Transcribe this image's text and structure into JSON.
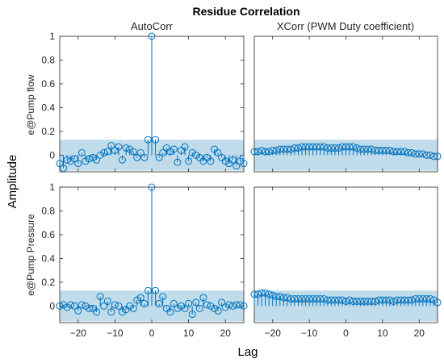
{
  "chart_data": {
    "type": "stem",
    "title": "Residue Correlation",
    "xlabel": "Lag",
    "ylabel": "Amplitude",
    "column_titles": [
      "AutoCorr",
      "XCorr (PWM Duty coefficient)"
    ],
    "row_labels": [
      "e@Pump flow",
      "e@Pump Pressure"
    ],
    "xlim": [
      -25,
      25
    ],
    "xticks": [
      -20,
      -10,
      0,
      10,
      20
    ],
    "colors": {
      "stem": "#0072BD",
      "band": "#9ECAE1"
    },
    "panels": [
      {
        "name": "AutoCorr e@Pump flow",
        "ylim": [
          -0.14,
          1.0
        ],
        "yticks": [
          0,
          0.2,
          0.4,
          0.6,
          0.8,
          1
        ],
        "confidence": 0.13,
        "x": [
          -25,
          -24,
          -23,
          -22,
          -21,
          -20,
          -19,
          -18,
          -17,
          -16,
          -15,
          -14,
          -13,
          -12,
          -11,
          -10,
          -9,
          -8,
          -7,
          -6,
          -5,
          -4,
          -3,
          -2,
          -1,
          0,
          1,
          2,
          3,
          4,
          5,
          6,
          7,
          8,
          9,
          10,
          11,
          12,
          13,
          14,
          15,
          16,
          17,
          18,
          19,
          20,
          21,
          22,
          23,
          24,
          25
        ],
        "y": [
          -0.07,
          -0.11,
          -0.04,
          -0.05,
          -0.03,
          -0.07,
          0.02,
          -0.05,
          -0.03,
          -0.02,
          -0.04,
          0.0,
          0.02,
          0.03,
          0.08,
          0.04,
          0.07,
          -0.04,
          0.06,
          0.05,
          0.03,
          -0.02,
          0.02,
          -0.02,
          0.13,
          1.0,
          0.13,
          -0.02,
          0.02,
          0.06,
          0.03,
          0.05,
          -0.06,
          0.04,
          0.07,
          -0.05,
          0.02,
          0.0,
          -0.02,
          -0.05,
          -0.02,
          -0.05,
          0.05,
          0.02,
          -0.02,
          -0.05,
          -0.07,
          -0.04,
          -0.09,
          -0.05,
          -0.07
        ]
      },
      {
        "name": "XCorr e@Pump flow",
        "ylim": [
          -0.14,
          1.0
        ],
        "confidence": 0.13,
        "x": [
          -25,
          -24,
          -23,
          -22,
          -21,
          -20,
          -19,
          -18,
          -17,
          -16,
          -15,
          -14,
          -13,
          -12,
          -11,
          -10,
          -9,
          -8,
          -7,
          -6,
          -5,
          -4,
          -3,
          -2,
          -1,
          0,
          1,
          2,
          3,
          4,
          5,
          6,
          7,
          8,
          9,
          10,
          11,
          12,
          13,
          14,
          15,
          16,
          17,
          18,
          19,
          20,
          21,
          22,
          23,
          24,
          25
        ],
        "y": [
          0.03,
          0.03,
          0.04,
          0.03,
          0.03,
          0.04,
          0.04,
          0.05,
          0.05,
          0.05,
          0.05,
          0.06,
          0.06,
          0.07,
          0.07,
          0.07,
          0.07,
          0.07,
          0.07,
          0.07,
          0.06,
          0.06,
          0.06,
          0.06,
          0.07,
          0.07,
          0.07,
          0.07,
          0.06,
          0.05,
          0.05,
          0.05,
          0.05,
          0.04,
          0.04,
          0.04,
          0.04,
          0.04,
          0.03,
          0.03,
          0.03,
          0.03,
          0.02,
          0.02,
          0.01,
          0.01,
          0.01,
          0.0,
          0.0,
          -0.01,
          -0.01
        ]
      },
      {
        "name": "AutoCorr e@Pump Pressure",
        "ylim": [
          -0.14,
          1.0
        ],
        "yticks": [
          0,
          0.2,
          0.4,
          0.6,
          0.8,
          1
        ],
        "confidence": 0.13,
        "x": [
          -25,
          -24,
          -23,
          -22,
          -21,
          -20,
          -19,
          -18,
          -17,
          -16,
          -15,
          -14,
          -13,
          -12,
          -11,
          -10,
          -9,
          -8,
          -7,
          -6,
          -5,
          -4,
          -3,
          -2,
          -1,
          0,
          1,
          2,
          3,
          4,
          5,
          6,
          7,
          8,
          9,
          10,
          11,
          12,
          13,
          14,
          15,
          16,
          17,
          18,
          19,
          20,
          21,
          22,
          23,
          24,
          25
        ],
        "y": [
          0.0,
          0.01,
          -0.01,
          0.01,
          0.0,
          -0.04,
          0.01,
          0.0,
          -0.02,
          -0.02,
          -0.05,
          0.08,
          0.0,
          0.04,
          -0.05,
          0.01,
          0.0,
          -0.05,
          -0.03,
          0.0,
          -0.02,
          0.05,
          0.07,
          0.02,
          0.13,
          1.0,
          0.13,
          0.02,
          0.08,
          -0.02,
          -0.05,
          0.02,
          -0.02,
          0.0,
          -0.02,
          0.02,
          -0.07,
          0.03,
          -0.02,
          0.07,
          0.01,
          0.0,
          -0.02,
          -0.04,
          0.03,
          -0.01,
          0.01,
          0.0,
          0.01,
          0.01,
          0.0
        ]
      },
      {
        "name": "XCorr e@Pump Pressure",
        "ylim": [
          -0.14,
          1.0
        ],
        "confidence": 0.13,
        "x": [
          -25,
          -24,
          -23,
          -22,
          -21,
          -20,
          -19,
          -18,
          -17,
          -16,
          -15,
          -14,
          -13,
          -12,
          -11,
          -10,
          -9,
          -8,
          -7,
          -6,
          -5,
          -4,
          -3,
          -2,
          -1,
          0,
          1,
          2,
          3,
          4,
          5,
          6,
          7,
          8,
          9,
          10,
          11,
          12,
          13,
          14,
          15,
          16,
          17,
          18,
          19,
          20,
          21,
          22,
          23,
          24,
          25
        ],
        "y": [
          0.1,
          0.1,
          0.11,
          0.11,
          0.1,
          0.09,
          0.08,
          0.08,
          0.07,
          0.07,
          0.06,
          0.06,
          0.06,
          0.06,
          0.06,
          0.06,
          0.06,
          0.06,
          0.06,
          0.06,
          0.05,
          0.05,
          0.05,
          0.05,
          0.05,
          0.04,
          0.05,
          0.04,
          0.04,
          0.04,
          0.04,
          0.04,
          0.04,
          0.04,
          0.05,
          0.05,
          0.05,
          0.05,
          0.04,
          0.05,
          0.05,
          0.05,
          0.05,
          0.05,
          0.06,
          0.06,
          0.06,
          0.06,
          0.06,
          0.05,
          0.03
        ]
      }
    ]
  }
}
